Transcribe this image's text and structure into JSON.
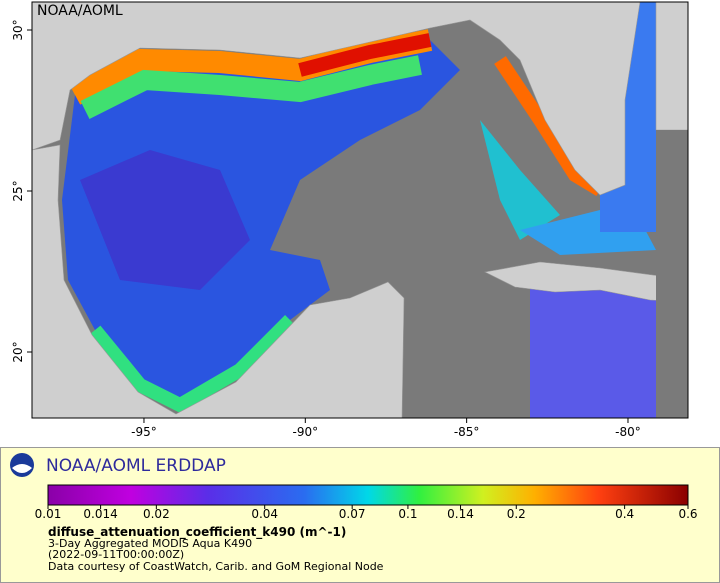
{
  "map": {
    "title": "NOAA/AOML",
    "xlim": [
      -98.47,
      -78.14
    ],
    "ylim": [
      17.95,
      30.87
    ],
    "xticks": [
      {
        "value": -95,
        "label": "-95°"
      },
      {
        "value": -90,
        "label": "-90°"
      },
      {
        "value": -85,
        "label": "-85°"
      },
      {
        "value": -80,
        "label": "-80°"
      }
    ],
    "yticks": [
      {
        "value": 20,
        "label": "20°"
      },
      {
        "value": 25,
        "label": "25°"
      },
      {
        "value": 30,
        "label": "30°"
      }
    ]
  },
  "legend": {
    "title": "NOAA/AOML ERDDAP",
    "colorbar": {
      "scale": "log",
      "lim": [
        0.01,
        0.6
      ],
      "ticks": [
        0.01,
        0.014,
        0.02,
        0.04,
        0.07,
        0.1,
        0.14,
        0.2,
        0.4,
        0.6
      ]
    },
    "variable": "diffuse_attenuation_coefficient_k490 (m^-1)",
    "lines": [
      "3-Day Aggregated MODIS Aqua K490",
      "(2022-09-11T00:00:00Z)",
      "Data courtesy of CoastWatch, Carib. and GoM Regional Node"
    ]
  }
}
